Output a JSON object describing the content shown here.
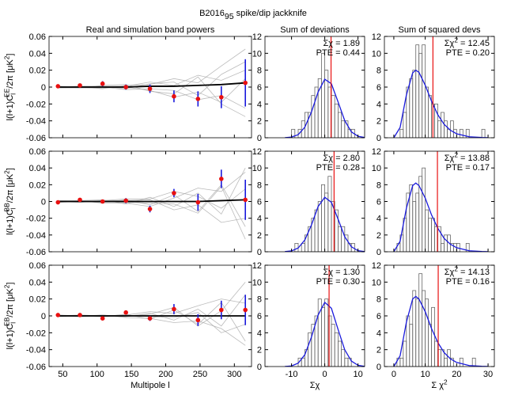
{
  "title": {
    "pre": "B2016",
    "sub": "95",
    "post": " spike/dip jackknife"
  },
  "column_titles": [
    "Real and simulation band powers",
    "Sum of deviations",
    "Sum of squared devs"
  ],
  "chart_data": [
    {
      "type": "bandpower",
      "x": [
        43,
        75,
        108,
        142,
        177,
        212,
        247,
        281,
        316
      ],
      "values": [
        0.001,
        0.002,
        0.004,
        0.0,
        -0.002,
        -0.011,
        -0.014,
        -0.012,
        0.005
      ],
      "errors": [
        0.001,
        0.001,
        0.003,
        0.003,
        0.005,
        0.007,
        0.009,
        0.013,
        0.028
      ],
      "model": [
        0,
        0,
        0,
        0,
        0.001,
        0.001,
        0.002,
        0.003,
        0.005
      ],
      "simulations": [
        [
          0.0,
          0.001,
          0.001,
          -0.002,
          0.004,
          0.006,
          -0.01,
          0.015,
          0.03
        ],
        [
          0.001,
          -0.001,
          0.002,
          0.003,
          -0.005,
          -0.008,
          0.012,
          -0.02,
          -0.035
        ],
        [
          -0.001,
          0.0,
          -0.002,
          0.002,
          0.003,
          0.01,
          0.005,
          0.025,
          0.045
        ],
        [
          0.0,
          0.001,
          0.0,
          -0.003,
          -0.002,
          -0.004,
          -0.015,
          -0.01,
          -0.025
        ],
        [
          0.001,
          0.0,
          0.001,
          0.001,
          0.006,
          0.002,
          0.014,
          0.008,
          0.02
        ],
        [
          -0.001,
          -0.001,
          -0.001,
          0.0,
          -0.004,
          -0.012,
          -0.006,
          -0.018,
          0.01
        ]
      ],
      "xlim": [
        30,
        325
      ],
      "ylim": [
        -0.06,
        0.06
      ],
      "xticks": [
        50,
        100,
        150,
        200,
        250,
        300
      ],
      "yticks": [
        -0.06,
        -0.04,
        -0.02,
        0,
        0.02,
        0.04,
        0.06
      ],
      "ylabel": {
        "pre": "l(l+1)C",
        "sub": "l",
        "sup": "EE",
        "post": "/2π [μK",
        "post_sup": "2",
        "end": "]"
      }
    },
    {
      "type": "histogram",
      "bins": [
        -10,
        -9,
        -8,
        -7,
        -6,
        -5,
        -4,
        -3,
        -2,
        -1,
        0,
        1,
        2,
        3,
        4,
        5,
        6,
        7,
        8,
        9,
        10
      ],
      "counts": [
        1,
        0,
        1,
        2,
        3,
        3,
        5,
        6,
        7,
        10,
        8,
        6,
        5,
        4,
        3,
        2,
        2,
        1,
        1,
        0
      ],
      "fit": {
        "x": [
          -12,
          -10,
          -8,
          -6,
          -4,
          -2,
          0,
          2,
          4,
          6,
          8,
          10,
          12
        ],
        "values": [
          0.01,
          0.08,
          0.37,
          1.25,
          3.06,
          5.42,
          6.93,
          6.39,
          4.25,
          2.04,
          0.7,
          0.18,
          0.03
        ]
      },
      "observed": 1.89,
      "stat_label": {
        "pre": "Σχ = 1.89"
      },
      "pte_label": "PTE = 0.44",
      "xlim": [
        -18,
        12
      ],
      "ylim": [
        0,
        12
      ],
      "xticks": [
        -10,
        0,
        10
      ],
      "yticks": [
        0,
        2,
        4,
        6,
        8,
        10,
        12
      ]
    },
    {
      "type": "histogram",
      "bins": [
        0,
        1,
        2,
        3,
        4,
        5,
        6,
        7,
        8,
        9,
        10,
        11,
        12,
        13,
        14,
        15,
        16,
        17,
        18,
        19,
        20,
        21,
        22,
        23,
        24,
        25,
        26,
        27,
        28,
        29,
        30
      ],
      "counts": [
        0,
        0,
        1,
        3,
        6,
        7,
        8,
        11,
        10,
        11,
        6,
        5,
        4,
        4,
        2,
        3,
        2,
        1,
        2,
        1,
        0,
        1,
        0,
        1,
        0,
        0,
        0,
        0,
        1,
        0
      ],
      "fit": {
        "x": [
          0,
          2,
          4,
          6,
          7,
          8,
          10,
          12,
          14,
          16,
          18,
          20,
          24,
          28,
          30
        ],
        "values": [
          0,
          1.22,
          5.06,
          7.69,
          8,
          7.75,
          6.22,
          4.33,
          2.73,
          1.6,
          0.89,
          0.47,
          0.12,
          0.03,
          0.01
        ]
      },
      "observed": 12.45,
      "stat_label": {
        "pre": "Σχ",
        "sup": "2",
        "post": " = 12.45"
      },
      "pte_label": "PTE = 0.20",
      "xlim": [
        -3,
        32
      ],
      "ylim": [
        0,
        12
      ],
      "xticks": [
        0,
        10,
        20,
        30
      ],
      "yticks": [
        0,
        2,
        4,
        6,
        8,
        10,
        12
      ]
    },
    {
      "type": "bandpower",
      "x": [
        43,
        75,
        108,
        142,
        177,
        212,
        247,
        281,
        316
      ],
      "values": [
        -0.001,
        0.002,
        0.0,
        0.001,
        -0.009,
        0.01,
        -0.001,
        0.027,
        0.002
      ],
      "errors": [
        0.001,
        0.001,
        0.002,
        0.003,
        0.004,
        0.005,
        0.01,
        0.011,
        0.024
      ],
      "model": [
        0,
        0,
        0,
        0,
        0,
        0,
        0,
        0.001,
        0.002
      ],
      "simulations": [
        [
          0.001,
          0.0,
          -0.001,
          0.002,
          -0.004,
          0.008,
          -0.012,
          0.02,
          -0.03
        ],
        [
          -0.001,
          0.001,
          0.002,
          -0.003,
          0.005,
          -0.006,
          0.01,
          -0.015,
          0.04
        ],
        [
          0.0,
          -0.001,
          0.001,
          0.001,
          0.002,
          -0.01,
          -0.004,
          -0.025,
          -0.02
        ],
        [
          0.001,
          0.001,
          -0.002,
          -0.002,
          -0.006,
          0.004,
          0.016,
          0.012,
          0.035
        ],
        [
          0.0,
          0.0,
          0.001,
          0.003,
          0.003,
          0.012,
          0.006,
          -0.008,
          0.015
        ],
        [
          -0.001,
          0.0,
          0.0,
          -0.001,
          -0.002,
          -0.003,
          -0.014,
          0.018,
          -0.045
        ]
      ],
      "xlim": [
        30,
        325
      ],
      "ylim": [
        -0.06,
        0.06
      ],
      "xticks": [
        50,
        100,
        150,
        200,
        250,
        300
      ],
      "yticks": [
        -0.06,
        -0.04,
        -0.02,
        0,
        0.02,
        0.04,
        0.06
      ],
      "ylabel": {
        "pre": "l(l+1)C",
        "sub": "l",
        "sup": "BB",
        "post": "/2π [μK",
        "post_sup": "2",
        "end": "]"
      }
    },
    {
      "type": "histogram",
      "bins": [
        -10,
        -9,
        -8,
        -7,
        -6,
        -5,
        -4,
        -3,
        -2,
        -1,
        0,
        1,
        2,
        3,
        4,
        5,
        6,
        7,
        8,
        9,
        10
      ],
      "counts": [
        0,
        1,
        0,
        1,
        2,
        3,
        4,
        5,
        6,
        8,
        7,
        9,
        6,
        5,
        3,
        3,
        2,
        1,
        1,
        0
      ],
      "fit": {
        "x": [
          -12,
          -10,
          -8,
          -6,
          -4,
          -2,
          0,
          2,
          4,
          6,
          8,
          10,
          12
        ],
        "values": [
          0.02,
          0.1,
          0.45,
          1.4,
          3.2,
          5.4,
          6.5,
          5.9,
          3.9,
          1.8,
          0.6,
          0.13,
          0.02
        ]
      },
      "observed": 2.8,
      "stat_label": {
        "pre": "Σχ = 2.80"
      },
      "pte_label": "PTE = 0.28",
      "xlim": [
        -18,
        12
      ],
      "ylim": [
        0,
        12
      ],
      "xticks": [
        -10,
        0,
        10
      ],
      "yticks": [
        0,
        2,
        4,
        6,
        8,
        10,
        12
      ]
    },
    {
      "type": "histogram",
      "bins": [
        0,
        1,
        2,
        3,
        4,
        5,
        6,
        7,
        8,
        9,
        10,
        11,
        12,
        13,
        14,
        15,
        16,
        17,
        18,
        19,
        20,
        21,
        22,
        23,
        24,
        25,
        26,
        27,
        28,
        29,
        30
      ],
      "counts": [
        0,
        1,
        2,
        4,
        7,
        8,
        6,
        7,
        9,
        10,
        5,
        4,
        4,
        3,
        3,
        1,
        2,
        2,
        1,
        1,
        1,
        0,
        0,
        1,
        0,
        0,
        0,
        0,
        0,
        0
      ],
      "fit": {
        "x": [
          0,
          2,
          4,
          6,
          7,
          8,
          10,
          12,
          14,
          16,
          18,
          20,
          24,
          28,
          30
        ],
        "values": [
          0,
          1.25,
          5.2,
          7.9,
          8.2,
          7.9,
          6.4,
          4.4,
          2.8,
          1.6,
          0.9,
          0.48,
          0.12,
          0.03,
          0.01
        ]
      },
      "observed": 13.88,
      "stat_label": {
        "pre": "Σχ",
        "sup": "2",
        "post": " = 13.88"
      },
      "pte_label": "PTE = 0.17",
      "xlim": [
        -3,
        32
      ],
      "ylim": [
        0,
        12
      ],
      "xticks": [
        0,
        10,
        20,
        30
      ],
      "yticks": [
        0,
        2,
        4,
        6,
        8,
        10,
        12
      ]
    },
    {
      "type": "bandpower",
      "x": [
        43,
        75,
        108,
        142,
        177,
        212,
        247,
        281,
        316
      ],
      "values": [
        0.001,
        0.001,
        -0.003,
        0.004,
        -0.003,
        0.008,
        -0.005,
        0.007,
        0.007
      ],
      "errors": [
        0.001,
        0.001,
        0.001,
        0.002,
        0.003,
        0.006,
        0.007,
        0.011,
        0.018
      ],
      "model": [
        0,
        0,
        0,
        0,
        0,
        0,
        0,
        0,
        0
      ],
      "simulations": [
        [
          0.0,
          -0.001,
          0.001,
          -0.001,
          0.003,
          -0.005,
          0.008,
          -0.012,
          0.025
        ],
        [
          0.001,
          0.0,
          -0.001,
          0.002,
          -0.004,
          0.007,
          -0.01,
          0.016,
          -0.03
        ],
        [
          0.0,
          0.001,
          0.0,
          0.001,
          0.005,
          0.003,
          0.012,
          0.02,
          0.015
        ],
        [
          -0.001,
          0.0,
          0.001,
          -0.002,
          -0.003,
          -0.008,
          -0.006,
          -0.015,
          -0.035
        ],
        [
          0.0,
          0.0,
          -0.001,
          0.0,
          0.002,
          0.01,
          -0.012,
          0.006,
          0.04
        ],
        [
          0.001,
          -0.001,
          0.0,
          0.001,
          -0.001,
          -0.002,
          0.004,
          -0.02,
          -0.01
        ]
      ],
      "xlim": [
        30,
        325
      ],
      "ylim": [
        -0.06,
        0.06
      ],
      "xticks": [
        50,
        100,
        150,
        200,
        250,
        300
      ],
      "yticks": [
        -0.06,
        -0.04,
        -0.02,
        0,
        0.02,
        0.04,
        0.06
      ],
      "ylabel": {
        "pre": "l(l+1)C",
        "sub": "l",
        "sup": "EB",
        "post": "/2π [μK",
        "post_sup": "2",
        "end": "]"
      },
      "xlabel": {
        "pre": "Multipole l"
      }
    },
    {
      "type": "histogram",
      "bins": [
        -10,
        -9,
        -8,
        -7,
        -6,
        -5,
        -4,
        -3,
        -2,
        -1,
        0,
        1,
        2,
        3,
        4,
        5,
        6,
        7,
        8,
        9,
        10
      ],
      "counts": [
        0,
        0,
        1,
        1,
        2,
        4,
        5,
        6,
        8,
        7,
        8,
        6,
        5,
        4,
        3,
        2,
        1,
        1,
        0,
        0
      ],
      "fit": {
        "x": [
          -12,
          -10,
          -8,
          -6,
          -4,
          -2,
          0,
          2,
          4,
          6,
          8,
          10,
          12
        ],
        "values": [
          0.01,
          0.07,
          0.4,
          1.4,
          3.5,
          6.1,
          7.6,
          6.9,
          4.4,
          2.0,
          0.65,
          0.15,
          0.02
        ]
      },
      "observed": 1.3,
      "stat_label": {
        "pre": "Σχ = 1.30"
      },
      "pte_label": "PTE = 0.30",
      "xlim": [
        -18,
        12
      ],
      "ylim": [
        0,
        12
      ],
      "xticks": [
        -10,
        0,
        10
      ],
      "yticks": [
        0,
        2,
        4,
        6,
        8,
        10,
        12
      ],
      "xlabel": {
        "pre": "Σχ"
      }
    },
    {
      "type": "histogram",
      "bins": [
        0,
        1,
        2,
        3,
        4,
        5,
        6,
        7,
        8,
        9,
        10,
        11,
        12,
        13,
        14,
        15,
        16,
        17,
        18,
        19,
        20,
        21,
        22,
        23,
        24,
        25,
        26,
        27,
        28,
        29,
        30
      ],
      "counts": [
        0,
        1,
        1,
        3,
        6,
        5,
        9,
        8,
        11,
        9,
        8,
        5,
        7,
        3,
        2,
        2,
        1,
        2,
        1,
        0,
        0,
        1,
        0,
        0,
        0,
        1,
        0,
        0,
        0,
        0
      ],
      "fit": {
        "x": [
          0,
          2,
          4,
          6,
          7,
          8,
          10,
          12,
          14,
          16,
          18,
          20,
          24,
          28,
          30
        ],
        "values": [
          0,
          1.27,
          5.25,
          8.0,
          8.3,
          8.0,
          6.5,
          4.5,
          2.85,
          1.65,
          0.92,
          0.49,
          0.12,
          0.03,
          0.01
        ]
      },
      "observed": 14.13,
      "stat_label": {
        "pre": "Σχ",
        "sup": "2",
        "post": " = 14.13"
      },
      "pte_label": "PTE = 0.16",
      "xlim": [
        -3,
        32
      ],
      "ylim": [
        0,
        12
      ],
      "xticks": [
        0,
        10,
        20,
        30
      ],
      "yticks": [
        0,
        2,
        4,
        6,
        8,
        10,
        12
      ],
      "xlabel": {
        "pre": "Σ χ",
        "sup": "2"
      }
    }
  ]
}
